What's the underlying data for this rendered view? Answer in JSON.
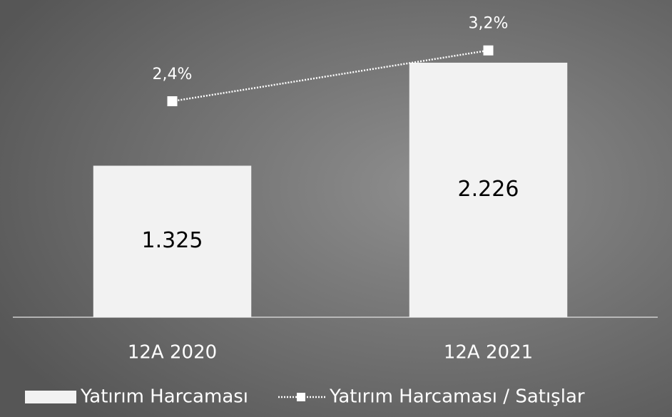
{
  "chart_data": {
    "type": "bar",
    "categories": [
      "12A 2020",
      "12A 2021"
    ],
    "series": [
      {
        "name": "Yatırım Harcaması",
        "type": "bar",
        "color": "#f2f2f2",
        "values": [
          1325,
          2226
        ],
        "value_labels": [
          "1.325",
          "2.226"
        ]
      },
      {
        "name": "Yatırım Harcaması / Satışlar",
        "type": "line",
        "color": "#ffffff",
        "axis": "y2",
        "values": [
          2.4,
          3.2
        ],
        "value_labels": [
          "2,4%",
          "3,2%"
        ]
      }
    ],
    "ylim": [
      0,
      2500
    ],
    "y2lim": [
      -1,
      3.5
    ],
    "legend": "bottom"
  }
}
